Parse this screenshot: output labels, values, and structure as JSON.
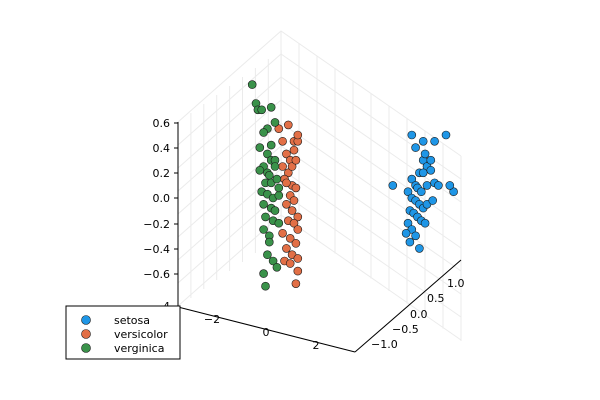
{
  "chart_data": {
    "type": "scatter",
    "projection": "3d",
    "legend_position": "bottom-left",
    "grid": true,
    "axes": {
      "z": {
        "ticks": [
          "0.6",
          "0.4",
          "0.2",
          "0.0",
          "−0.2",
          "−0.4",
          "−0.6",
          "−4"
        ]
      },
      "x": {
        "ticks": [
          "−2",
          "0",
          "2"
        ]
      },
      "y": {
        "ticks": [
          "1.0",
          "0.5",
          "0.0",
          "−0.5",
          "−1.0"
        ]
      }
    },
    "series": [
      {
        "name": "setosa",
        "color": "#1f96e6",
        "note": "3D points projected as screen-space locations; values are approximate readings in axis data units (x horizontal, z vertical)",
        "points": [
          [
            3.1,
            0.1
          ],
          [
            3.6,
            0.5
          ],
          [
            3.7,
            0.4
          ],
          [
            3.9,
            0.3
          ],
          [
            3.95,
            0.35
          ],
          [
            4.0,
            0.25
          ],
          [
            3.8,
            0.2
          ],
          [
            3.9,
            0.2
          ],
          [
            4.1,
            0.22
          ],
          [
            3.6,
            0.15
          ],
          [
            3.7,
            0.1
          ],
          [
            3.75,
            0.08
          ],
          [
            3.85,
            0.05
          ],
          [
            4.0,
            0.1
          ],
          [
            4.2,
            0.12
          ],
          [
            4.3,
            0.1
          ],
          [
            3.5,
            0.05
          ],
          [
            3.6,
            0.0
          ],
          [
            3.7,
            -0.02
          ],
          [
            3.8,
            -0.05
          ],
          [
            3.9,
            -0.08
          ],
          [
            4.0,
            -0.05
          ],
          [
            4.15,
            -0.02
          ],
          [
            3.55,
            -0.1
          ],
          [
            3.65,
            -0.12
          ],
          [
            3.75,
            -0.15
          ],
          [
            3.85,
            -0.18
          ],
          [
            3.95,
            -0.2
          ],
          [
            3.5,
            -0.2
          ],
          [
            3.6,
            -0.25
          ],
          [
            3.7,
            -0.3
          ],
          [
            3.45,
            -0.28
          ],
          [
            3.55,
            -0.35
          ],
          [
            3.8,
            -0.4
          ],
          [
            4.2,
            0.45
          ],
          [
            4.5,
            0.5
          ],
          [
            4.7,
            0.05
          ],
          [
            4.6,
            0.1
          ],
          [
            4.1,
            0.3
          ],
          [
            3.9,
            0.45
          ]
        ]
      },
      {
        "name": "versicolor",
        "color": "#e26f46",
        "points": [
          [
            0.1,
            0.55
          ],
          [
            0.2,
            0.45
          ],
          [
            0.3,
            0.35
          ],
          [
            0.4,
            0.3
          ],
          [
            0.5,
            0.45
          ],
          [
            0.6,
            0.45
          ],
          [
            0.5,
            0.38
          ],
          [
            0.6,
            0.5
          ],
          [
            0.2,
            0.25
          ],
          [
            0.35,
            0.2
          ],
          [
            0.25,
            0.15
          ],
          [
            0.45,
            0.1
          ],
          [
            0.55,
            0.08
          ],
          [
            0.4,
            0.02
          ],
          [
            0.5,
            -0.02
          ],
          [
            0.3,
            -0.05
          ],
          [
            0.45,
            -0.1
          ],
          [
            0.6,
            -0.15
          ],
          [
            0.35,
            -0.18
          ],
          [
            0.5,
            -0.2
          ],
          [
            0.6,
            -0.25
          ],
          [
            0.2,
            -0.28
          ],
          [
            0.4,
            -0.32
          ],
          [
            0.55,
            -0.36
          ],
          [
            0.3,
            -0.4
          ],
          [
            0.45,
            -0.45
          ],
          [
            0.6,
            -0.48
          ],
          [
            0.25,
            -0.5
          ],
          [
            0.4,
            -0.52
          ],
          [
            0.6,
            -0.58
          ],
          [
            0.35,
            0.58
          ],
          [
            0.55,
            -0.68
          ],
          [
            0.45,
            0.25
          ],
          [
            0.3,
            0.12
          ],
          [
            0.55,
            0.3
          ]
        ]
      },
      {
        "name": "verginica",
        "color": "#3a924a",
        "points": [
          [
            -0.6,
            0.9
          ],
          [
            -0.5,
            0.75
          ],
          [
            -0.45,
            0.7
          ],
          [
            -0.35,
            0.7
          ],
          [
            -0.1,
            0.72
          ],
          [
            0.0,
            0.6
          ],
          [
            -0.2,
            0.55
          ],
          [
            -0.3,
            0.52
          ],
          [
            -0.4,
            0.4
          ],
          [
            -0.2,
            0.35
          ],
          [
            -0.1,
            0.3
          ],
          [
            0.0,
            0.3
          ],
          [
            -0.3,
            0.25
          ],
          [
            -0.2,
            0.2
          ],
          [
            -0.15,
            0.18
          ],
          [
            -0.25,
            0.12
          ],
          [
            -0.1,
            0.12
          ],
          [
            0.05,
            0.15
          ],
          [
            -0.35,
            0.05
          ],
          [
            -0.2,
            0.03
          ],
          [
            -0.05,
            0.0
          ],
          [
            0.1,
            0.02
          ],
          [
            -0.3,
            -0.05
          ],
          [
            -0.1,
            -0.08
          ],
          [
            0.0,
            -0.1
          ],
          [
            -0.25,
            -0.15
          ],
          [
            -0.05,
            -0.18
          ],
          [
            0.1,
            -0.2
          ],
          [
            -0.3,
            -0.25
          ],
          [
            -0.15,
            -0.3
          ],
          [
            -0.2,
            -0.45
          ],
          [
            -0.05,
            -0.5
          ],
          [
            0.05,
            -0.55
          ],
          [
            -0.3,
            -0.6
          ],
          [
            -0.25,
            -0.7
          ],
          [
            -0.1,
            0.42
          ],
          [
            0.1,
            0.08
          ],
          [
            -0.4,
            0.22
          ],
          [
            -0.15,
            -0.35
          ],
          [
            0.0,
            0.25
          ]
        ]
      }
    ],
    "legend": [
      "setosa",
      "versicolor",
      "verginica"
    ]
  }
}
